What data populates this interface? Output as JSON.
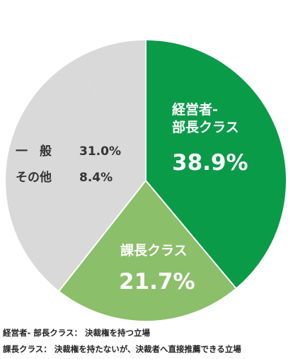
{
  "chart_data": {
    "type": "pie",
    "categories": [
      "経営者-\n部長クラス",
      "課長クラス",
      "一　般",
      "その他"
    ],
    "values": [
      38.9,
      21.7,
      31.0,
      8.4
    ],
    "value_labels": [
      "38.9%",
      "21.7%",
      "31.0%",
      "8.4%"
    ],
    "colors": [
      "#0a9b48",
      "#8bbf6a",
      "#d9d9d9",
      "#d9d9d9"
    ]
  },
  "notes": [
    "経営者- 部長クラス： 決裁権を持つ立場",
    "課長クラス： 決裁権を持たないが、決裁者へ直接推薦できる立場"
  ]
}
